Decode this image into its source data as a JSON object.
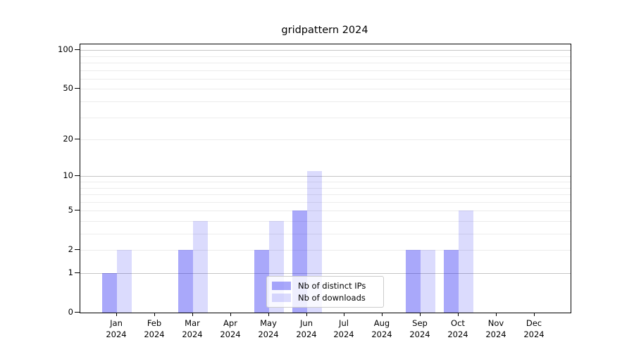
{
  "chart_data": {
    "type": "bar",
    "title": "gridpattern 2024",
    "categories": [
      "Jan",
      "Feb",
      "Mar",
      "Apr",
      "May",
      "Jun",
      "Jul",
      "Aug",
      "Sep",
      "Oct",
      "Nov",
      "Dec"
    ],
    "x_year_label": "2024",
    "series": [
      {
        "name": "Nb of distinct IPs",
        "values": [
          1,
          0,
          2,
          0,
          2,
          5,
          0,
          0,
          2,
          2,
          0,
          0
        ],
        "color": "rgba(8, 5, 242, 0.35)"
      },
      {
        "name": "Nb of downloads",
        "values": [
          2,
          0,
          4,
          0,
          4,
          11,
          0,
          0,
          2,
          5,
          0,
          0
        ],
        "color": "rgba(8, 5, 242, 0.145)"
      }
    ],
    "xlabel": "",
    "ylabel": "",
    "yscale": "log1p",
    "ylim": [
      0,
      110
    ],
    "y_tick_values": [
      0,
      1,
      2,
      5,
      10,
      20,
      50,
      100
    ],
    "y_tick_labels": [
      "0",
      "1",
      "2",
      "5",
      "10",
      "20",
      "50",
      "100"
    ],
    "y_emphasized_gridlines": [
      1,
      10,
      100
    ],
    "y_minor_gridlines": [
      3,
      4,
      6,
      7,
      8,
      9,
      30,
      40,
      60,
      70,
      80,
      90
    ],
    "grid": "horizontal",
    "legend_position": "lower center-left",
    "legend_labels": [
      "Nb of distinct IPs",
      "Nb of downloads"
    ]
  },
  "colors": {
    "background": "#ffffff",
    "bar_distinct_ips": "#a8a7fa",
    "bar_downloads": "#dbdbfd",
    "grid_minor": "#ececec",
    "grid_emphasized": "#c6c6c6",
    "axis": "#000000",
    "legend_border": "#cccccc"
  }
}
